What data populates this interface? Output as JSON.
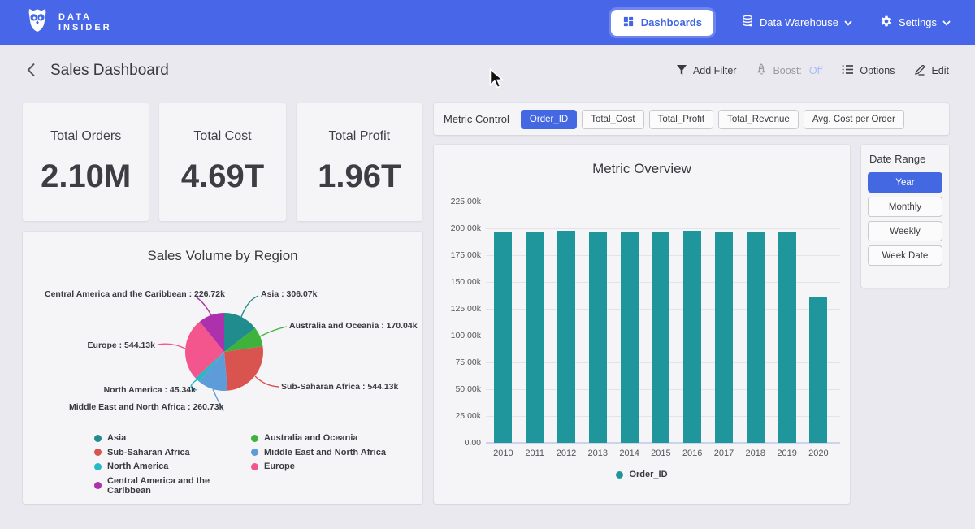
{
  "navbar": {
    "brand_line1": "DATA",
    "brand_line2": "INSIDER",
    "dashboards_label": "Dashboards",
    "data_warehouse_label": "Data Warehouse",
    "settings_label": "Settings"
  },
  "header": {
    "title": "Sales Dashboard",
    "add_filter_label": "Add Filter",
    "boost_label": "Boost:",
    "boost_value": "Off",
    "options_label": "Options",
    "edit_label": "Edit"
  },
  "kpis": [
    {
      "label": "Total Orders",
      "value": "2.10M"
    },
    {
      "label": "Total Cost",
      "value": "4.69T"
    },
    {
      "label": "Total Profit",
      "value": "1.96T"
    }
  ],
  "metric_control": {
    "label": "Metric Control",
    "options": [
      {
        "label": "Order_ID",
        "selected": true
      },
      {
        "label": "Total_Cost",
        "selected": false
      },
      {
        "label": "Total_Profit",
        "selected": false
      },
      {
        "label": "Total_Revenue",
        "selected": false
      },
      {
        "label": "Avg. Cost per Order",
        "selected": false
      }
    ]
  },
  "date_range": {
    "label": "Date Range",
    "options": [
      {
        "label": "Year",
        "selected": true
      },
      {
        "label": "Monthly",
        "selected": false
      },
      {
        "label": "Weekly",
        "selected": false
      },
      {
        "label": "Week Date",
        "selected": false
      }
    ]
  },
  "colors": {
    "navbar": "#4766e8",
    "accent": "#4468e2",
    "page_bg": "#e9e9ef",
    "card_bg": "#f5f5f7",
    "bar_teal": "#1f969b"
  },
  "chart_data": [
    {
      "type": "pie",
      "title": "Sales Volume by Region",
      "unit": "k",
      "slices": [
        {
          "label": "Asia",
          "value": 306.07,
          "display": "Asia : 306.07k",
          "color": "#218c8d"
        },
        {
          "label": "Australia and Oceania",
          "value": 170.04,
          "display": "Australia and Oceania : 170.04k",
          "color": "#3eb33b"
        },
        {
          "label": "Sub-Saharan Africa",
          "value": 544.13,
          "display": "Sub-Saharan Africa : 544.13k",
          "color": "#d9534f"
        },
        {
          "label": "Middle East and North Africa",
          "value": 260.73,
          "display": "Middle East and North Africa : 260.73k",
          "color": "#5d9cd8"
        },
        {
          "label": "North America",
          "value": 45.34,
          "display": "North America : 45.34k",
          "color": "#29b8c5"
        },
        {
          "label": "Europe",
          "value": 544.13,
          "display": "Europe : 544.13k",
          "color": "#f2568c"
        },
        {
          "label": "Central America and the Caribbean",
          "value": 226.72,
          "display": "Central America and the Caribbean : 226.72k",
          "color": "#ad31ad"
        }
      ],
      "legend_position": "bottom"
    },
    {
      "type": "bar",
      "title": "Metric Overview",
      "categories": [
        "2010",
        "2011",
        "2012",
        "2013",
        "2014",
        "2015",
        "2016",
        "2017",
        "2018",
        "2019",
        "2020"
      ],
      "series": [
        {
          "name": "Order_ID",
          "color": "#1f969b",
          "values": [
            196.2,
            196.2,
            198.0,
            196.1,
            196.1,
            196.1,
            198.0,
            196.3,
            196.1,
            196.2,
            136.4
          ]
        }
      ],
      "unit": "k",
      "ylim": [
        0,
        225
      ],
      "ytick_labels": [
        "0.00",
        "25.00k",
        "50.00k",
        "75.00k",
        "100.00k",
        "125.00k",
        "150.00k",
        "175.00k",
        "200.00k",
        "225.00k"
      ],
      "grid": true,
      "legend_position": "bottom"
    }
  ]
}
